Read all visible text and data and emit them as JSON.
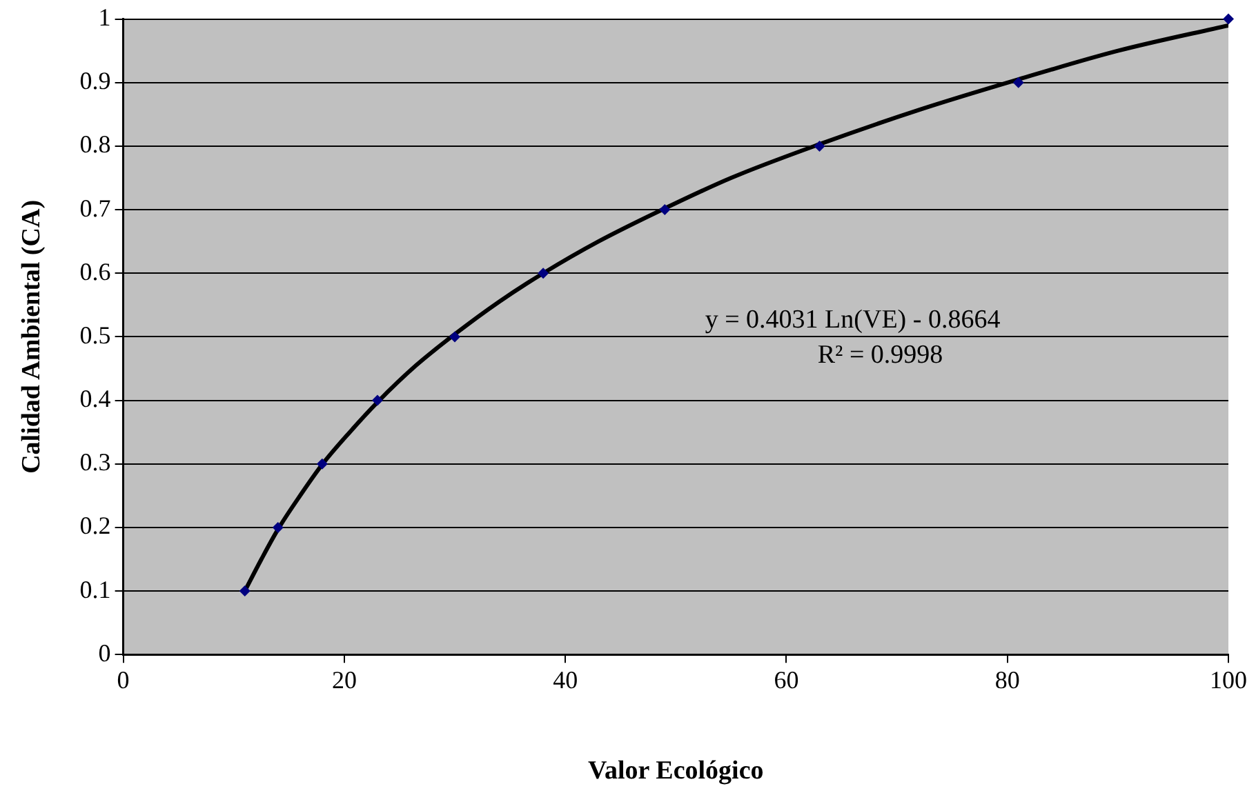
{
  "chart_data": {
    "type": "scatter",
    "xlabel": "Valor Ecológico",
    "ylabel": "Calidad Ambiental (CA)",
    "xlim": [
      0,
      100
    ],
    "xticks": [
      0,
      20,
      40,
      60,
      80,
      100
    ],
    "ylim": [
      0,
      1
    ],
    "yticks": [
      0,
      0.1,
      0.2,
      0.3,
      0.4,
      0.5,
      0.6,
      0.7,
      0.8,
      0.9,
      1
    ],
    "grid": "y",
    "legend": false,
    "marker": "diamond",
    "series": [
      {
        "type": "line",
        "color": "#000000",
        "marker": "none",
        "x": [
          11,
          12.5,
          14,
          16,
          18,
          20.5,
          23,
          26.5,
          30,
          34,
          38,
          43,
          49,
          55,
          63,
          72,
          81,
          90,
          100
        ],
        "values": [
          0.1,
          0.15,
          0.197,
          0.25,
          0.299,
          0.35,
          0.397,
          0.455,
          0.504,
          0.555,
          0.6,
          0.65,
          0.702,
          0.75,
          0.803,
          0.857,
          0.905,
          0.95,
          0.99
        ]
      },
      {
        "color": "#000080",
        "x": [
          11,
          14,
          18,
          23,
          30,
          38,
          49,
          63,
          81,
          100
        ],
        "values": [
          0.1,
          0.2,
          0.3,
          0.4,
          0.5,
          0.6,
          0.7,
          0.8,
          0.9,
          1
        ]
      }
    ],
    "annotations": [
      "y = 0.4031 Ln(VE) - 0.8664",
      "R² = 0.9998"
    ]
  }
}
